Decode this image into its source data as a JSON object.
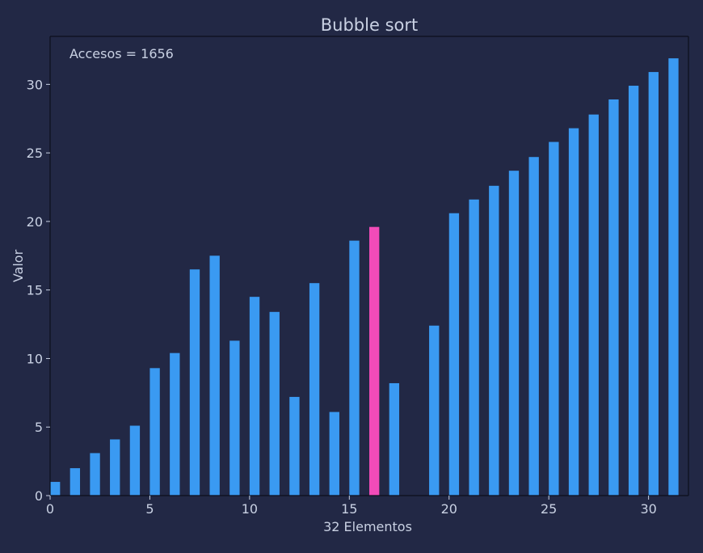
{
  "chart_data": {
    "type": "bar",
    "title": "Bubble sort",
    "annotation": "Accesos = 1656",
    "xlabel": "32 Elementos",
    "ylabel": "Valor",
    "xlim": [
      0,
      32
    ],
    "ylim": [
      0,
      33.5
    ],
    "xticks": [
      0,
      5,
      10,
      15,
      20,
      25,
      30
    ],
    "yticks": [
      0,
      5,
      10,
      15,
      20,
      25,
      30
    ],
    "grid": false,
    "x": [
      0,
      1,
      2,
      3,
      4,
      5,
      6,
      7,
      8,
      9,
      10,
      11,
      12,
      13,
      14,
      15,
      16,
      17,
      18,
      19,
      20,
      21,
      22,
      23,
      24,
      25,
      26,
      27,
      28,
      29,
      30,
      31
    ],
    "values": [
      1,
      2,
      3.1,
      4.1,
      5.1,
      9.3,
      10.4,
      16.5,
      17.5,
      11.3,
      14.5,
      13.4,
      7.2,
      15.5,
      6.1,
      18.6,
      19.6,
      8.2,
      0,
      12.4,
      20.6,
      21.6,
      22.6,
      23.7,
      24.7,
      25.8,
      26.8,
      27.8,
      28.9,
      29.9,
      30.9,
      31.9
    ],
    "highlight_index": 16,
    "colors": {
      "background": "#222845",
      "bar": "#3a9af2",
      "highlight": "#f24bb8",
      "axis": "#0c0f1c",
      "text": "#c9d1e3"
    }
  }
}
